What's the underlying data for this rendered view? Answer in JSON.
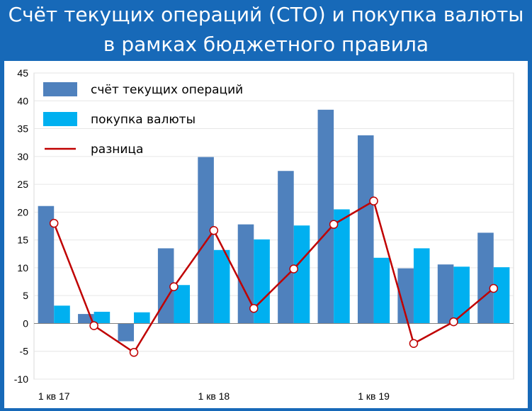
{
  "title": {
    "line1": "Счёт текущих операций (СТО) и покупка валюты",
    "line2": "в рамках бюджетного правила"
  },
  "colors": {
    "sto": "#4f81bd",
    "fx": "#00b0f0",
    "diff": "#c00000",
    "background": "#1769b8"
  },
  "chart_data": {
    "type": "bar",
    "categories": [
      "1 кв 17",
      "",
      "",
      "",
      "1 кв 18",
      "",
      "",
      "",
      "1 кв 19",
      "",
      "",
      ""
    ],
    "x_tick_labels": [
      {
        "index": 0,
        "label": "1 кв 17"
      },
      {
        "index": 4,
        "label": "1 кв 18"
      },
      {
        "index": 8,
        "label": "1 кв 19"
      }
    ],
    "y_ticks": [
      "45",
      "40",
      "35",
      "30",
      "25",
      "20",
      "15",
      "10",
      "5",
      "0",
      "-5",
      "-10"
    ],
    "ylim": [
      -10,
      45
    ],
    "grid": true,
    "legend_position": "top-left",
    "series": [
      {
        "name": "счёт текущих операций",
        "kind": "bar",
        "values": [
          21.1,
          1.7,
          -3.2,
          13.5,
          29.9,
          17.8,
          27.4,
          38.4,
          33.8,
          9.9,
          10.6,
          16.3
        ]
      },
      {
        "name": "покупка валюты",
        "kind": "bar",
        "values": [
          3.2,
          2.1,
          2.0,
          6.9,
          13.2,
          15.1,
          17.6,
          20.5,
          11.8,
          13.5,
          10.2,
          10.1
        ]
      },
      {
        "name": "разница",
        "kind": "line",
        "values": [
          18.0,
          -0.4,
          -5.2,
          6.6,
          16.7,
          2.7,
          9.8,
          17.8,
          22.0,
          -3.6,
          0.3,
          6.3
        ]
      }
    ]
  }
}
